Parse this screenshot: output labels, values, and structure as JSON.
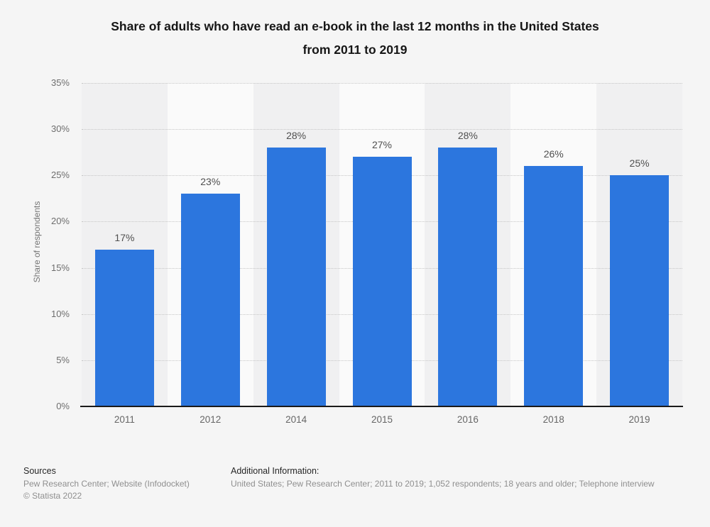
{
  "title": {
    "line1": "Share of adults who have read an e-book in the last 12 months in the United States",
    "line2": "from 2011 to 2019"
  },
  "chart_data": {
    "type": "bar",
    "title": "Share of adults who have read an e-book in the last 12 months in the United States from 2011 to 2019",
    "categories": [
      "2011",
      "2012",
      "2014",
      "2015",
      "2016",
      "2018",
      "2019"
    ],
    "values": [
      17,
      23,
      28,
      27,
      28,
      26,
      25
    ],
    "labels": [
      "17%",
      "23%",
      "28%",
      "27%",
      "28%",
      "26%",
      "25%"
    ],
    "xlabel": "",
    "ylabel": "Share of respondents",
    "ylim": [
      0,
      35
    ],
    "yticks": [
      {
        "value": 0,
        "label": "0%"
      },
      {
        "value": 5,
        "label": "5%"
      },
      {
        "value": 10,
        "label": "10%"
      },
      {
        "value": 15,
        "label": "15%"
      },
      {
        "value": 20,
        "label": "20%"
      },
      {
        "value": 25,
        "label": "25%"
      },
      {
        "value": 30,
        "label": "30%"
      },
      {
        "value": 35,
        "label": "35%"
      }
    ],
    "grid": "horizontal-dotted",
    "legend": "none",
    "bar_color": "#2c76de"
  },
  "footer": {
    "sources_label": "Sources",
    "sources_line": "Pew Research Center; Website (Infodocket)",
    "copyright": "© Statista 2022",
    "additional_label": "Additional Information:",
    "additional_line": "United States; Pew Research Center; 2011 to 2019; 1,052 respondents; 18 years and older; Telephone interview"
  }
}
